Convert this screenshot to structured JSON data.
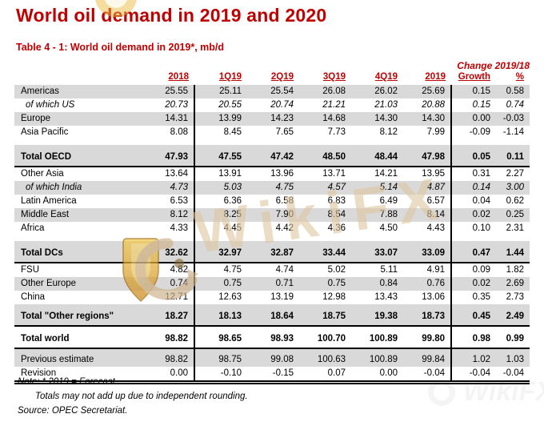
{
  "page": {
    "title": "World oil demand in 2019 and 2020",
    "caption": "Table 4 - 1: World oil demand in 2019*, mb/d",
    "change_header": "Change 2019/18"
  },
  "theme": {
    "accent_red": "#c00000",
    "stripe_gray": "#d9d9d9",
    "rule_black": "#000000",
    "watermark_gold": "#e9b93c",
    "watermark_beige": "#dec69e"
  },
  "table": {
    "columns": [
      "2018",
      "1Q19",
      "2Q19",
      "3Q19",
      "4Q19",
      "2019",
      "Growth",
      "%"
    ],
    "rows": [
      {
        "label": "Americas",
        "style": "shade",
        "values": [
          "25.55",
          "25.11",
          "25.54",
          "26.08",
          "26.02",
          "25.69",
          "0.15",
          "0.58"
        ]
      },
      {
        "label": "of which US",
        "style": "italic",
        "values": [
          "20.73",
          "20.55",
          "20.74",
          "21.21",
          "21.03",
          "20.88",
          "0.15",
          "0.74"
        ]
      },
      {
        "label": "Europe",
        "style": "shade",
        "values": [
          "14.31",
          "13.99",
          "14.23",
          "14.68",
          "14.30",
          "14.30",
          "0.00",
          "-0.03"
        ]
      },
      {
        "label": "Asia Pacific",
        "style": "plain",
        "values": [
          "8.08",
          "8.45",
          "7.65",
          "7.73",
          "8.12",
          "7.99",
          "-0.09",
          "-1.14"
        ]
      },
      {
        "style": "gap"
      },
      {
        "label": "Total OECD",
        "style": "total shade",
        "values": [
          "47.93",
          "47.55",
          "47.42",
          "48.50",
          "48.44",
          "47.98",
          "0.05",
          "0.11"
        ]
      },
      {
        "label": "Other Asia",
        "style": "plain",
        "values": [
          "13.64",
          "13.91",
          "13.96",
          "13.71",
          "14.21",
          "13.95",
          "0.31",
          "2.27"
        ]
      },
      {
        "label": "of which India",
        "style": "italic shade",
        "values": [
          "4.73",
          "5.03",
          "4.75",
          "4.57",
          "5.14",
          "4.87",
          "0.14",
          "3.00"
        ]
      },
      {
        "label": "Latin America",
        "style": "plain",
        "values": [
          "6.53",
          "6.36",
          "6.58",
          "6.83",
          "6.49",
          "6.57",
          "0.04",
          "0.62"
        ]
      },
      {
        "label": "Middle East",
        "style": "shade",
        "values": [
          "8.12",
          "8.25",
          "7.90",
          "8.54",
          "7.88",
          "8.14",
          "0.02",
          "0.25"
        ]
      },
      {
        "label": "Africa",
        "style": "plain",
        "values": [
          "4.33",
          "4.45",
          "4.42",
          "4.36",
          "4.50",
          "4.43",
          "0.10",
          "2.31"
        ]
      },
      {
        "style": "gap"
      },
      {
        "label": "Total DCs",
        "style": "total shade",
        "values": [
          "32.62",
          "32.97",
          "32.87",
          "33.44",
          "33.07",
          "33.09",
          "0.47",
          "1.44"
        ]
      },
      {
        "label": "FSU",
        "style": "plain",
        "values": [
          "4.82",
          "4.75",
          "4.74",
          "5.02",
          "5.11",
          "4.91",
          "0.09",
          "1.82"
        ]
      },
      {
        "label": "Other Europe",
        "style": "shade",
        "values": [
          "0.74",
          "0.75",
          "0.71",
          "0.75",
          "0.84",
          "0.76",
          "0.02",
          "2.69"
        ]
      },
      {
        "label": "China",
        "style": "plain",
        "values": [
          "12.71",
          "12.63",
          "13.19",
          "12.98",
          "13.43",
          "13.06",
          "0.35",
          "2.73"
        ]
      },
      {
        "label": "Total \"Other regions\"",
        "style": "total shade",
        "values": [
          "18.27",
          "18.13",
          "18.64",
          "18.75",
          "19.38",
          "18.73",
          "0.45",
          "2.49"
        ]
      },
      {
        "label": "Total world",
        "style": "total world",
        "values": [
          "98.82",
          "98.65",
          "98.93",
          "100.70",
          "100.89",
          "99.80",
          "0.98",
          "0.99"
        ]
      },
      {
        "label": "Previous estimate",
        "style": "shade padtop",
        "values": [
          "98.82",
          "98.75",
          "99.08",
          "100.63",
          "100.89",
          "99.84",
          "1.02",
          "1.03"
        ]
      },
      {
        "label": "Revision",
        "style": "last",
        "values": [
          "0.00",
          "-0.10",
          "-0.15",
          "0.07",
          "0.00",
          "-0.04",
          "-0.04",
          "-0.04"
        ]
      }
    ]
  },
  "notes": {
    "line1": "Note: * 2019 = Forecast.",
    "line2": "Totals may not add up due to independent rounding.",
    "line3": "Source: OPEC Secretariat."
  },
  "watermark": {
    "text": "WikiFX"
  }
}
